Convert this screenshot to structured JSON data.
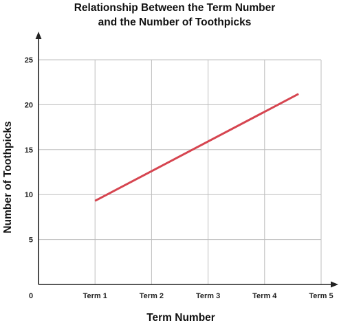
{
  "chart_data": {
    "type": "line",
    "title_lines": [
      "Relationship Between the Term Number",
      "and the Number of Toothpicks"
    ],
    "xlabel": "Term Number",
    "ylabel": "Number of Toothpicks",
    "x_origin_label": "0",
    "categories": [
      "Term 1",
      "Term 2",
      "Term 3",
      "Term 4",
      "Term 5"
    ],
    "xlim": [
      0,
      5
    ],
    "ylim": [
      0,
      25
    ],
    "yticks": [
      5,
      10,
      15,
      20,
      25
    ],
    "grid": true,
    "series": [
      {
        "color": "#d64550",
        "points": [
          {
            "x": 1,
            "y": 9.3
          },
          {
            "x": 4.6,
            "y": 21.2
          }
        ]
      }
    ]
  }
}
